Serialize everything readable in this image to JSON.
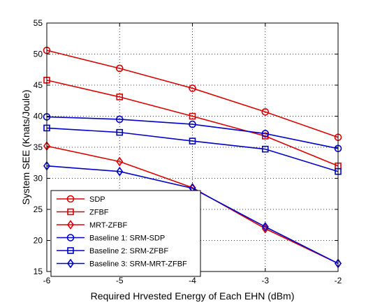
{
  "chart_data": {
    "type": "line",
    "title": "",
    "xlabel": "Required Hrvested Energy of Each EHN (dBm)",
    "ylabel": "System SEE (Knats/Joule)",
    "x": [
      -6,
      -5,
      -4,
      -3,
      -2
    ],
    "xticks": [
      -6,
      -5,
      -4,
      -3,
      -2
    ],
    "yticks": [
      15,
      20,
      25,
      30,
      35,
      40,
      45,
      50,
      55
    ],
    "xlim": [
      -6,
      -2
    ],
    "ylim": [
      15,
      55
    ],
    "grid": "on (dotted)",
    "legend_position": "bottom-left",
    "series": [
      {
        "name": "SDP",
        "color": "#dd0000",
        "marker": "circle",
        "values": [
          50.6,
          47.7,
          44.5,
          40.7,
          36.6
        ]
      },
      {
        "name": "ZFBF",
        "color": "#dd0000",
        "marker": "square",
        "values": [
          45.8,
          43.1,
          40.0,
          36.8,
          32.0
        ]
      },
      {
        "name": "MRT-ZFBF",
        "color": "#dd0000",
        "marker": "diamond",
        "values": [
          35.2,
          32.7,
          28.5,
          21.9,
          16.3
        ]
      },
      {
        "name": "Baseline 1: SRM-SDP",
        "color": "#0000cc",
        "marker": "circle",
        "values": [
          39.9,
          39.5,
          38.7,
          37.2,
          34.8
        ]
      },
      {
        "name": "Baseline 2: SRM-ZFBF",
        "color": "#0000cc",
        "marker": "square",
        "values": [
          38.1,
          37.4,
          36.0,
          34.7,
          31.1
        ]
      },
      {
        "name": "Baseline 3: SRM-MRT-ZFBF",
        "color": "#0000cc",
        "marker": "diamond",
        "values": [
          32.0,
          31.1,
          28.4,
          22.2,
          16.3
        ]
      }
    ]
  }
}
